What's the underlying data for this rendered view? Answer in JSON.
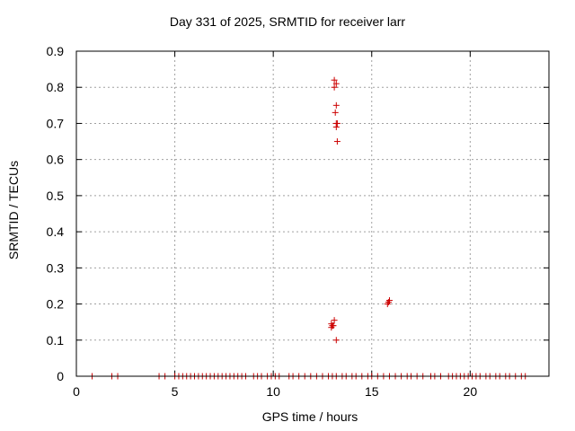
{
  "chart_data": {
    "type": "scatter",
    "title": "Day 331 of 2025, SRMTID for receiver larr",
    "xlabel": "GPS time / hours",
    "ylabel": "SRMTID / TECUs",
    "xlim": [
      0,
      24
    ],
    "ylim": [
      0,
      0.9
    ],
    "xticks": [
      "0",
      "5",
      "10",
      "15",
      "20"
    ],
    "yticks": [
      "0",
      "0.1",
      "0.2",
      "0.3",
      "0.4",
      "0.5",
      "0.6",
      "0.7",
      "0.8",
      "0.9"
    ],
    "grid": true,
    "marker": "+",
    "color": "#cc0000",
    "series": [
      {
        "name": "larr",
        "x": [
          0.8,
          1.8,
          2.1,
          4.2,
          4.5,
          5.0,
          5.2,
          5.4,
          5.6,
          5.8,
          6.0,
          6.2,
          6.4,
          6.6,
          6.8,
          7.0,
          7.2,
          7.4,
          7.6,
          7.8,
          8.0,
          8.2,
          8.4,
          8.6,
          9.0,
          9.2,
          9.4,
          9.7,
          9.9,
          10.1,
          10.3,
          10.8,
          11.0,
          11.3,
          11.6,
          11.9,
          12.2,
          12.5,
          12.8,
          13.0,
          13.2,
          13.5,
          13.7,
          14.0,
          14.2,
          14.5,
          14.8,
          15.0,
          15.3,
          15.6,
          15.9,
          16.2,
          16.5,
          16.8,
          17.0,
          17.3,
          17.6,
          18.0,
          18.2,
          18.5,
          18.9,
          19.1,
          19.3,
          19.5,
          19.7,
          19.9,
          20.1,
          20.3,
          20.5,
          20.8,
          21.0,
          21.3,
          21.5,
          21.8,
          22.0,
          22.3,
          22.6,
          22.8,
          13.1,
          13.2,
          13.1,
          13.2,
          13.15,
          13.2,
          13.25,
          13.2,
          13.25,
          13.1,
          12.95,
          13.0,
          12.95,
          13.05,
          13.2,
          15.8,
          15.9,
          15.85
        ],
        "y": [
          0,
          0,
          0,
          0,
          0,
          0,
          0,
          0,
          0,
          0,
          0,
          0,
          0,
          0,
          0,
          0,
          0,
          0,
          0,
          0,
          0,
          0,
          0,
          0,
          0,
          0,
          0,
          0,
          0,
          0,
          0,
          0,
          0,
          0,
          0,
          0,
          0,
          0,
          0,
          0,
          0,
          0,
          0,
          0,
          0,
          0,
          0,
          0,
          0,
          0,
          0,
          0,
          0,
          0,
          0,
          0,
          0,
          0,
          0,
          0,
          0,
          0,
          0,
          0,
          0,
          0,
          0,
          0,
          0,
          0,
          0,
          0,
          0,
          0,
          0,
          0,
          0,
          0,
          0.82,
          0.81,
          0.8,
          0.75,
          0.73,
          0.7,
          0.7,
          0.69,
          0.65,
          0.155,
          0.145,
          0.14,
          0.135,
          0.14,
          0.1,
          0.2,
          0.21,
          0.205
        ]
      }
    ]
  }
}
